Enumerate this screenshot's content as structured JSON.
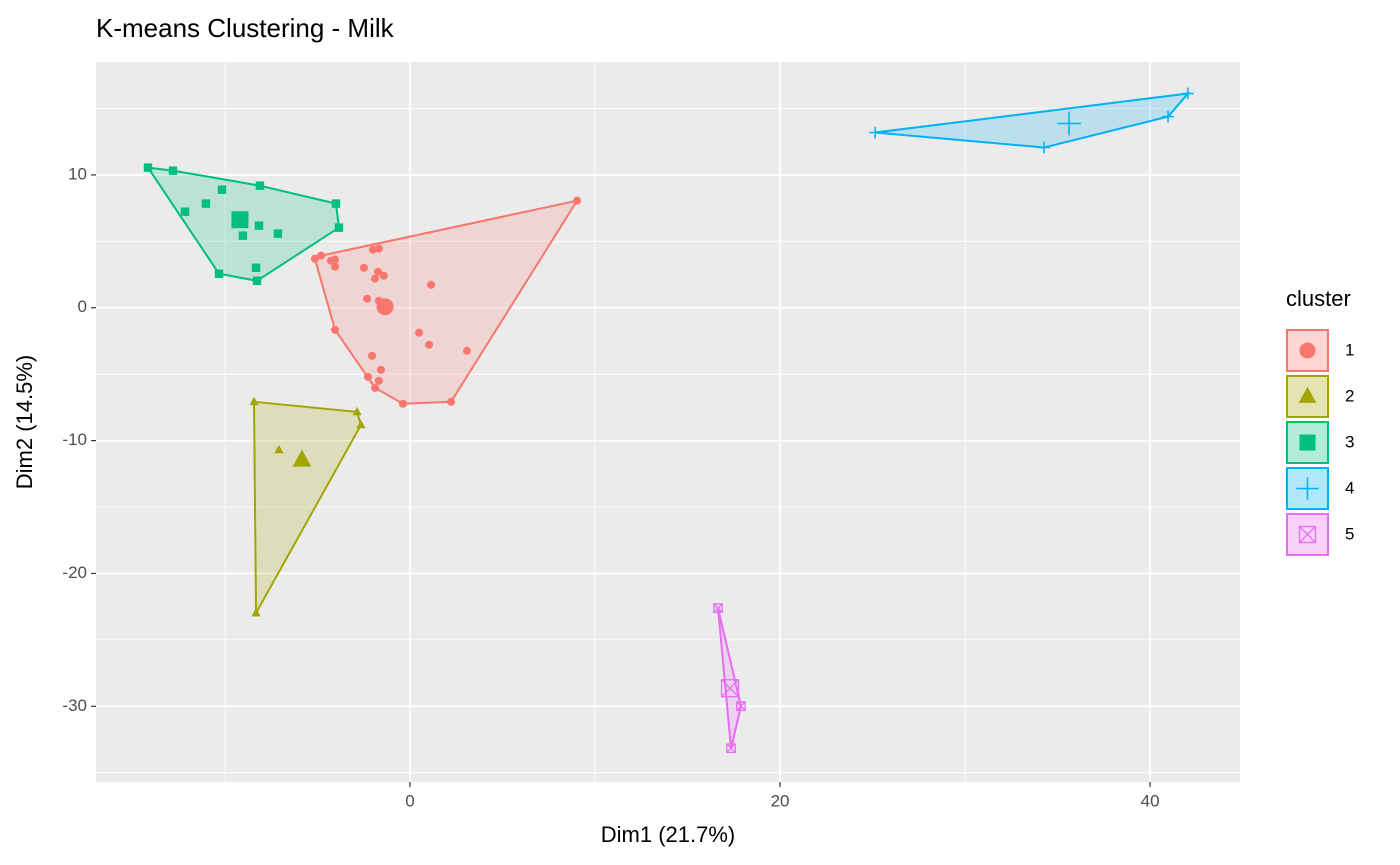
{
  "chart_data": {
    "type": "scatter",
    "title": "K-means Clustering - Milk",
    "x_label": "Dim1 (21.7%)",
    "y_label": "Dim2 (14.5%)",
    "legend_title": "cluster",
    "legend": "right",
    "grid": true,
    "xlim": [
      -16.97,
      44.86
    ],
    "ylim": [
      -35.7,
      18.5
    ],
    "xticks": [
      0,
      20,
      40
    ],
    "yticks": [
      -30,
      -20,
      -10,
      0,
      10
    ],
    "xminor": [
      -10,
      10,
      30
    ],
    "yminor": [
      -35,
      -25,
      -15,
      -5,
      5,
      15
    ],
    "series": [
      {
        "name": "1",
        "color": "#F8766D",
        "shape": "circle",
        "x": [
          9.03,
          -5.14,
          -4.81,
          -4.27,
          -4.05,
          -4.05,
          -2.0,
          -1.68,
          -2.49,
          -1.41,
          -1.89,
          -1.73,
          1.14,
          -2.32,
          -1.68,
          -4.05,
          0.49,
          1.03,
          3.08,
          -2.05,
          -1.57,
          -2.27,
          -1.68,
          -1.89,
          -0.38,
          2.22
        ],
        "y": [
          8.06,
          3.69,
          3.92,
          3.54,
          3.62,
          3.09,
          4.37,
          4.45,
          3.01,
          2.41,
          2.19,
          2.71,
          1.73,
          0.68,
          0.53,
          -1.66,
          -1.88,
          -2.79,
          -3.24,
          -3.62,
          -4.67,
          -5.2,
          -5.5,
          -6.03,
          -7.23,
          -7.08
        ],
        "centroid": {
          "x": -1.35,
          "y": 0.08
        }
      },
      {
        "name": "2",
        "color": "#A3A500",
        "shape": "triangle",
        "x": [
          -8.43,
          -2.86,
          -2.65,
          -7.08,
          -8.32
        ],
        "y": [
          -7.08,
          -7.84,
          -8.82,
          -10.7,
          -22.98
        ],
        "centroid": {
          "x": -5.84,
          "y": -11.45
        }
      },
      {
        "name": "3",
        "color": "#00BF7D",
        "shape": "square",
        "x": [
          -14.16,
          -12.81,
          -8.11,
          -10.16,
          -11.03,
          -4.0,
          -12.16,
          -8.16,
          -3.84,
          -9.03,
          -7.14,
          -10.32,
          -8.32,
          -8.27
        ],
        "y": [
          10.55,
          10.32,
          9.19,
          8.89,
          7.84,
          7.84,
          7.23,
          6.18,
          6.03,
          5.43,
          5.58,
          2.56,
          3.01,
          2.03
        ],
        "centroid": {
          "x": -9.19,
          "y": 6.63
        }
      },
      {
        "name": "4",
        "color": "#00B0F6",
        "shape": "plus",
        "x": [
          25.14,
          42.05,
          40.97,
          34.27
        ],
        "y": [
          13.19,
          16.13,
          14.39,
          12.06
        ],
        "centroid": {
          "x": 35.62,
          "y": 13.87
        }
      },
      {
        "name": "5",
        "color": "#E76BF3",
        "shape": "square-cross",
        "x": [
          16.65,
          17.89,
          17.35
        ],
        "y": [
          -22.61,
          -29.99,
          -33.16
        ],
        "centroid": {
          "x": 17.3,
          "y": -28.64
        }
      }
    ]
  }
}
